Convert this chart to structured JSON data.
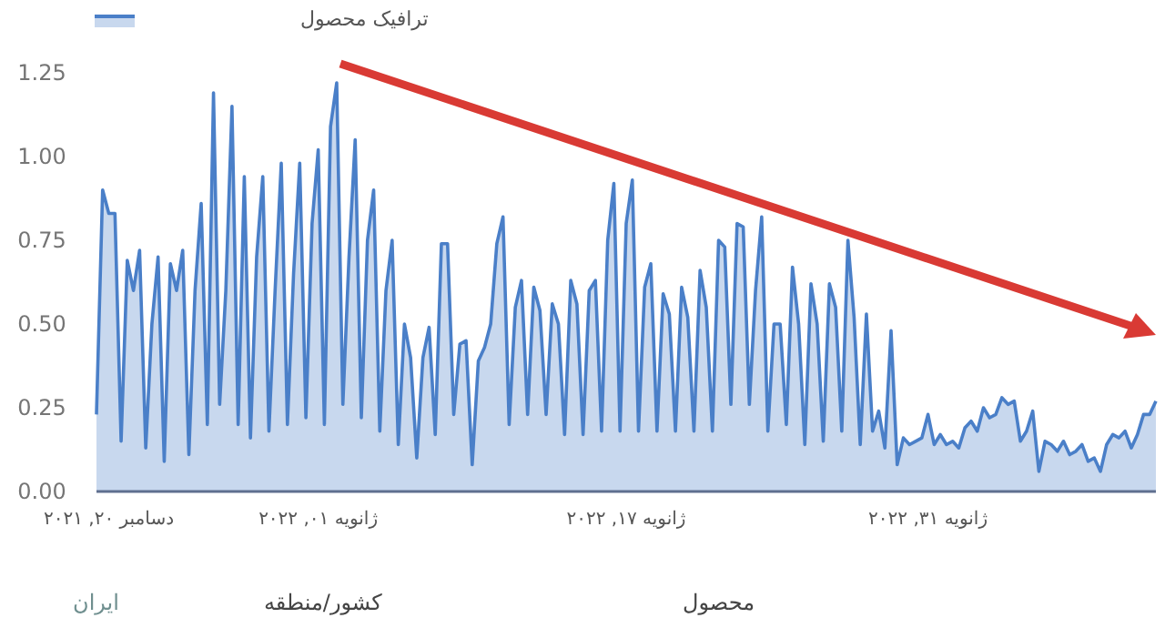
{
  "chart_data": {
    "type": "area",
    "legend": "top left",
    "grid": false,
    "ylim": [
      0,
      1.25
    ],
    "yticks": [
      {
        "value": 0,
        "label": "0.00"
      },
      {
        "value": 0.25,
        "label": "0.25"
      },
      {
        "value": 0.5,
        "label": "0.50"
      },
      {
        "value": 0.75,
        "label": "0.75"
      },
      {
        "value": 1,
        "label": "1.00"
      },
      {
        "value": 1.25,
        "label": "1.25"
      }
    ],
    "categories": [
      null,
      null,
      "دسامبر ۲۰, ۲۰۲۱",
      null,
      null,
      null,
      null,
      null,
      null,
      null,
      null,
      null,
      null,
      null,
      null,
      null,
      null,
      null,
      null,
      null,
      null,
      null,
      null,
      null,
      null,
      null,
      null,
      null,
      null,
      null,
      null,
      null,
      null,
      null,
      null,
      null,
      "ژانویه ۰۱, ۲۰۲۲",
      null,
      null,
      null,
      null,
      null,
      null,
      null,
      null,
      null,
      null,
      null,
      null,
      null,
      null,
      null,
      null,
      null,
      null,
      null,
      null,
      null,
      null,
      null,
      null,
      null,
      null,
      null,
      null,
      null,
      null,
      null,
      null,
      null,
      null,
      null,
      null,
      null,
      null,
      null,
      null,
      null,
      null,
      null,
      null,
      null,
      null,
      null,
      null,
      null,
      "ژانویه ۱۷, ۲۰۲۲",
      null,
      null,
      null,
      null,
      null,
      null,
      null,
      null,
      null,
      null,
      null,
      null,
      null,
      null,
      null,
      null,
      null,
      null,
      null,
      null,
      null,
      null,
      null,
      null,
      null,
      null,
      null,
      null,
      null,
      null,
      null,
      null,
      null,
      null,
      null,
      null,
      null,
      null,
      null,
      null,
      null,
      null,
      null,
      null,
      null,
      null,
      null,
      null,
      "ژانویه ۳۱, ۲۰۲۲",
      null,
      null,
      null,
      null,
      null,
      null,
      null,
      null,
      null,
      null,
      null,
      null,
      null,
      null,
      null,
      null,
      null,
      null,
      null,
      null,
      null,
      null,
      null,
      null,
      null,
      null,
      null,
      null,
      null,
      null,
      null,
      null,
      null,
      null,
      null,
      null,
      null
    ],
    "series": [
      {
        "name": "ترافیک محصول",
        "color": "#4a7fc8",
        "values": [
          0.23,
          0.9,
          0.83,
          0.83,
          0.15,
          0.69,
          0.6,
          0.72,
          0.13,
          0.5,
          0.7,
          0.09,
          0.68,
          0.6,
          0.72,
          0.11,
          0.6,
          0.86,
          0.2,
          1.19,
          0.26,
          0.6,
          1.15,
          0.2,
          0.94,
          0.16,
          0.7,
          0.94,
          0.18,
          0.6,
          0.98,
          0.2,
          0.65,
          0.98,
          0.22,
          0.8,
          1.02,
          0.2,
          1.09,
          1.22,
          0.26,
          0.7,
          1.05,
          0.22,
          0.75,
          0.9,
          0.18,
          0.6,
          0.75,
          0.14,
          0.5,
          0.4,
          0.1,
          0.4,
          0.49,
          0.17,
          0.74,
          0.74,
          0.23,
          0.44,
          0.45,
          0.08,
          0.39,
          0.43,
          0.5,
          0.74,
          0.82,
          0.2,
          0.55,
          0.63,
          0.23,
          0.61,
          0.54,
          0.23,
          0.56,
          0.5,
          0.17,
          0.63,
          0.56,
          0.17,
          0.6,
          0.63,
          0.18,
          0.75,
          0.92,
          0.18,
          0.8,
          0.93,
          0.18,
          0.61,
          0.68,
          0.18,
          0.59,
          0.53,
          0.18,
          0.61,
          0.52,
          0.18,
          0.66,
          0.55,
          0.18,
          0.75,
          0.73,
          0.26,
          0.8,
          0.79,
          0.26,
          0.6,
          0.82,
          0.18,
          0.5,
          0.5,
          0.2,
          0.67,
          0.5,
          0.14,
          0.62,
          0.5,
          0.15,
          0.62,
          0.55,
          0.18,
          0.75,
          0.52,
          0.14,
          0.53,
          0.18,
          0.24,
          0.13,
          0.48,
          0.08,
          0.16,
          0.14,
          0.15,
          0.16,
          0.23,
          0.14,
          0.17,
          0.14,
          0.15,
          0.13,
          0.19,
          0.21,
          0.18,
          0.25,
          0.22,
          0.23,
          0.28,
          0.26,
          0.27,
          0.15,
          0.18,
          0.24,
          0.06,
          0.15,
          0.14,
          0.12,
          0.15,
          0.11,
          0.12,
          0.14,
          0.09,
          0.1,
          0.06,
          0.14,
          0.17,
          0.16,
          0.18,
          0.13,
          0.17,
          0.23,
          0.23,
          0.27
        ]
      }
    ],
    "annotations": [
      "محصول",
      "کشور/منطقه",
      "ایران"
    ]
  }
}
